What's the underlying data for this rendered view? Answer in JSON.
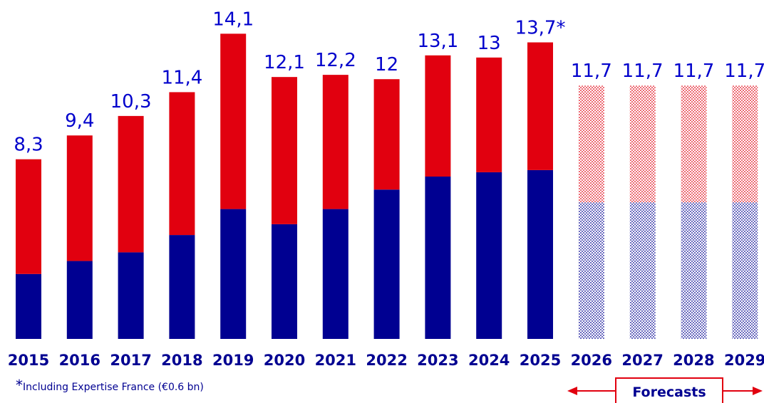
{
  "chart_data": {
    "type": "bar",
    "stacked": true,
    "categories": [
      "2015",
      "2016",
      "2017",
      "2018",
      "2019",
      "2020",
      "2021",
      "2022",
      "2023",
      "2024",
      "2025",
      "2026",
      "2027",
      "2028",
      "2029"
    ],
    "totals": [
      8.3,
      9.4,
      10.3,
      11.4,
      14.1,
      12.1,
      12.2,
      12.0,
      13.1,
      13.0,
      13.7,
      11.7,
      11.7,
      11.7,
      11.7
    ],
    "total_labels": [
      "8,3",
      "9,4",
      "10,3",
      "11,4",
      "14,1",
      "12,1",
      "12,2",
      "12",
      "13,1",
      "13",
      "13,7*",
      "11,7",
      "11,7",
      "11,7",
      "11,7"
    ],
    "series": [
      {
        "color": "#000091",
        "values": [
          3.0,
          3.6,
          4.0,
          4.8,
          6.0,
          5.3,
          6.0,
          6.9,
          7.5,
          7.7,
          7.8,
          6.3,
          6.3,
          6.3,
          6.3
        ]
      },
      {
        "color": "#e1000f",
        "values": [
          5.3,
          5.8,
          6.3,
          6.6,
          8.1,
          6.8,
          6.2,
          5.1,
          5.6,
          5.3,
          5.9,
          5.4,
          5.4,
          5.4,
          5.4
        ]
      }
    ],
    "forecast_from_index": 11,
    "ylim": [
      0,
      15
    ],
    "grid": false,
    "legend": "none"
  },
  "footnote": {
    "marker": "*",
    "text": "Including Expertise France (€0.6 bn)"
  },
  "forecast": {
    "label": "Forecasts"
  },
  "colors": {
    "blue": "#000091",
    "red": "#e1000f",
    "label_blue": "#0000cc",
    "year_text": "#000091"
  }
}
